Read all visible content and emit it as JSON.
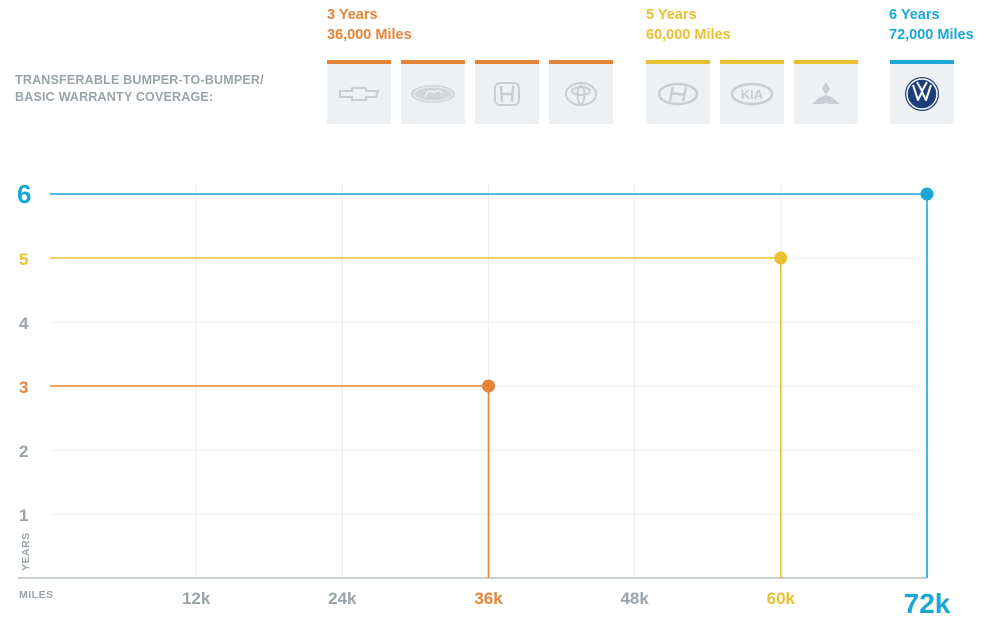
{
  "header": {
    "coverage_label_line1": "TRANSFERABLE BUMPER-TO-BUMPER/",
    "coverage_label_line2": "BASIC WARRANTY COVERAGE:"
  },
  "groups": [
    {
      "years_label": "3 Years",
      "miles_label": "36,000 Miles",
      "color": "#e58436",
      "brands": [
        {
          "icon": "chevrolet-logo-icon"
        },
        {
          "icon": "ford-logo-icon"
        },
        {
          "icon": "honda-logo-icon"
        },
        {
          "icon": "toyota-logo-icon"
        }
      ]
    },
    {
      "years_label": "5 Years",
      "miles_label": "60,000 Miles",
      "color": "#e8c030",
      "brands": [
        {
          "icon": "hyundai-logo-icon"
        },
        {
          "icon": "kia-logo-icon",
          "text": "KIA"
        },
        {
          "icon": "mitsubishi-logo-icon"
        }
      ]
    },
    {
      "years_label": "6 Years",
      "miles_label": "72,000 Miles",
      "color": "#1ba6d8",
      "brands": [
        {
          "icon": "volkswagen-logo-icon"
        }
      ]
    }
  ],
  "chart_data": {
    "type": "line",
    "xlabel": "MILES",
    "ylabel": "YEARS",
    "xlim": [
      0,
      72000
    ],
    "ylim": [
      0,
      6
    ],
    "grid": true,
    "x_ticks": [
      {
        "value": 12000,
        "label": "12k",
        "color": "#9aa3a8"
      },
      {
        "value": 24000,
        "label": "24k",
        "color": "#9aa3a8"
      },
      {
        "value": 36000,
        "label": "36k",
        "color": "#e58436"
      },
      {
        "value": 48000,
        "label": "48k",
        "color": "#9aa3a8"
      },
      {
        "value": 60000,
        "label": "60k",
        "color": "#e8c030"
      },
      {
        "value": 72000,
        "label": "72k",
        "color": "#1ba6d8"
      }
    ],
    "y_ticks": [
      {
        "value": 1,
        "label": "1",
        "color": "#9aa3a8"
      },
      {
        "value": 2,
        "label": "2",
        "color": "#9aa3a8"
      },
      {
        "value": 3,
        "label": "3",
        "color": "#e58436"
      },
      {
        "value": 4,
        "label": "4",
        "color": "#9aa3a8"
      },
      {
        "value": 5,
        "label": "5",
        "color": "#e8c030"
      },
      {
        "value": 6,
        "label": "6",
        "color": "#1ba6d8"
      }
    ],
    "series": [
      {
        "years": 3,
        "miles": 36000,
        "color": "#e58436"
      },
      {
        "years": 5,
        "miles": 60000,
        "color": "#e8c030"
      },
      {
        "years": 6,
        "miles": 72000,
        "color": "#1ba6d8"
      }
    ]
  }
}
